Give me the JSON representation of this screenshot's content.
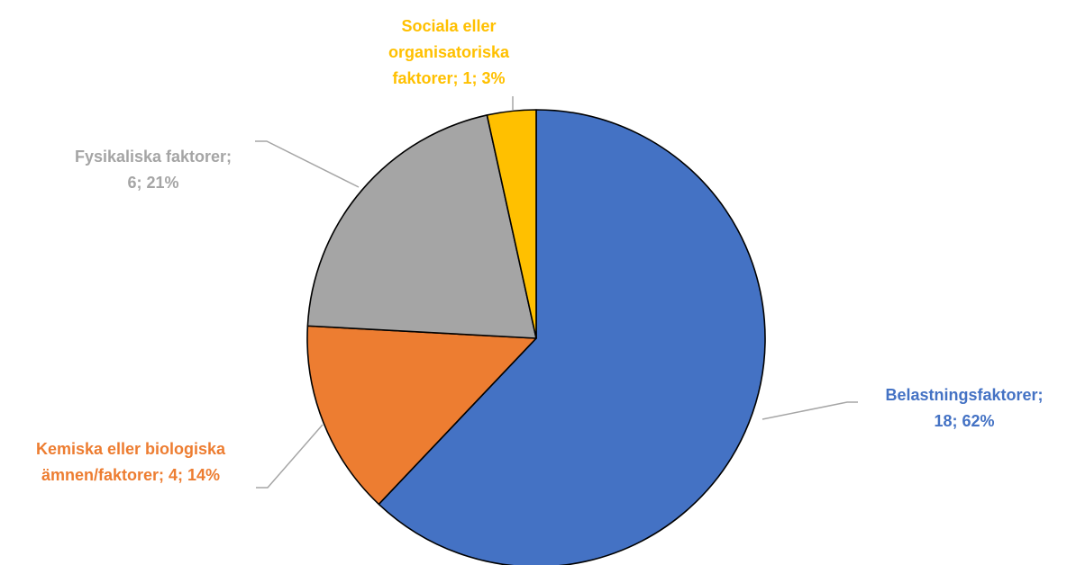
{
  "chart_data": {
    "type": "pie",
    "title": "",
    "start_category": "Belastningsfaktorer",
    "direction": "clockwise",
    "slices": [
      {
        "label": "Belastningsfaktorer",
        "value": 18,
        "percent": "62%",
        "color": "#4472C4",
        "label_lines": [
          "Belastningsfaktorer;",
          "18; 62%"
        ]
      },
      {
        "label": "Kemiska eller biologiska ämnen/faktorer",
        "value": 4,
        "percent": "14%",
        "color": "#ED7D31",
        "label_lines": [
          "Kemiska eller biologiska",
          "ämnen/faktorer; 4; 14%"
        ]
      },
      {
        "label": "Fysikaliska faktorer",
        "value": 6,
        "percent": "21%",
        "color": "#A5A5A5",
        "label_lines": [
          "Fysikaliska faktorer;",
          "6; 21%"
        ]
      },
      {
        "label": "Sociala eller organisatoriska faktorer",
        "value": 1,
        "percent": "3%",
        "color": "#FFC000",
        "label_lines": [
          "Sociala eller",
          "organisatoriska",
          "faktorer; 1; 3%"
        ]
      }
    ]
  }
}
